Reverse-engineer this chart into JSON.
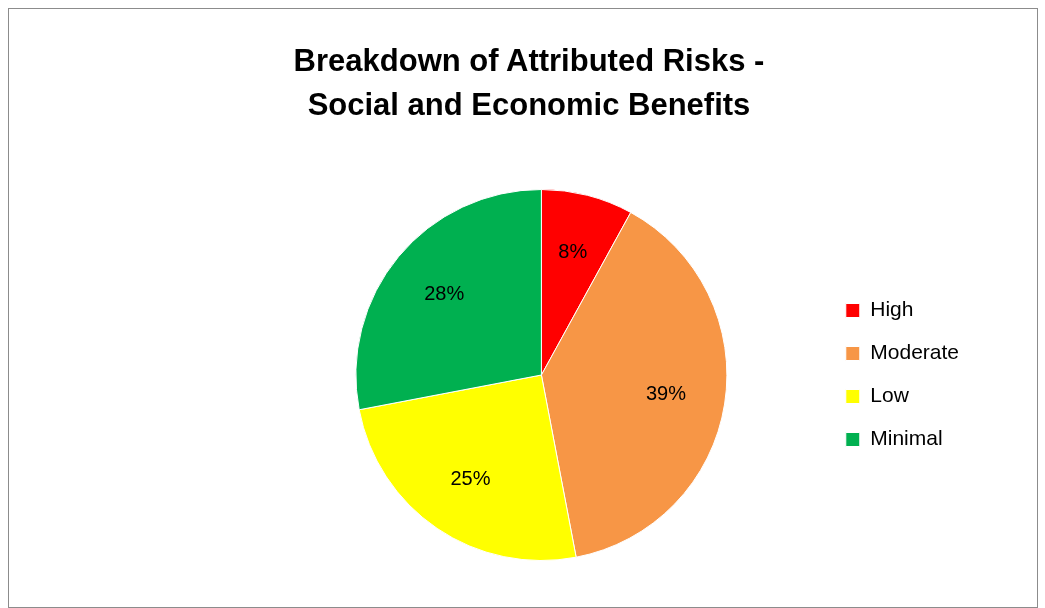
{
  "chart_data": {
    "type": "pie",
    "title": "Breakdown of Attributed Risks - Social and Economic Benefits",
    "categories": [
      "High",
      "Moderate",
      "Low",
      "Minimal"
    ],
    "values": [
      8,
      39,
      25,
      28
    ],
    "colors": [
      "#ff0000",
      "#f79646",
      "#ffff00",
      "#00b050"
    ],
    "value_labels": [
      "8%",
      "39%",
      "25%",
      "28%"
    ],
    "legend": "right"
  }
}
